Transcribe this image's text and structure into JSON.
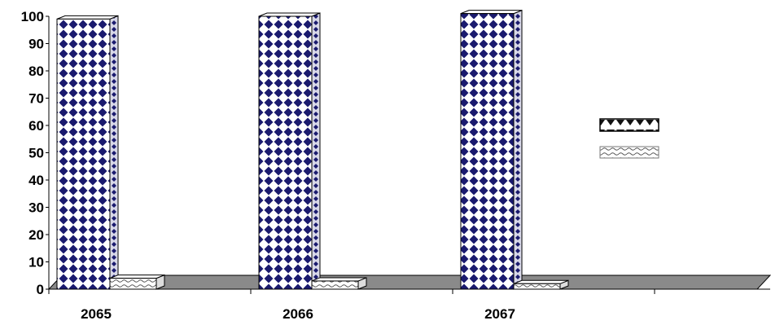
{
  "chart_data": {
    "type": "bar",
    "title": "",
    "xlabel": "",
    "ylabel": "",
    "categories": [
      "2065",
      "2066",
      "2067"
    ],
    "series": [
      {
        "values": [
          99,
          100,
          101
        ],
        "color": "#1a1a6e",
        "pattern": "diamond-check"
      },
      {
        "values": [
          4,
          3,
          2
        ],
        "color": "#ffffff",
        "pattern": "wave"
      }
    ],
    "ylim": [
      0,
      100
    ],
    "yticks": [
      0,
      10,
      20,
      30,
      40,
      50,
      60,
      70,
      80,
      90,
      100
    ],
    "grid": false,
    "legend": "right",
    "floor_color": "#8a8a8a"
  }
}
